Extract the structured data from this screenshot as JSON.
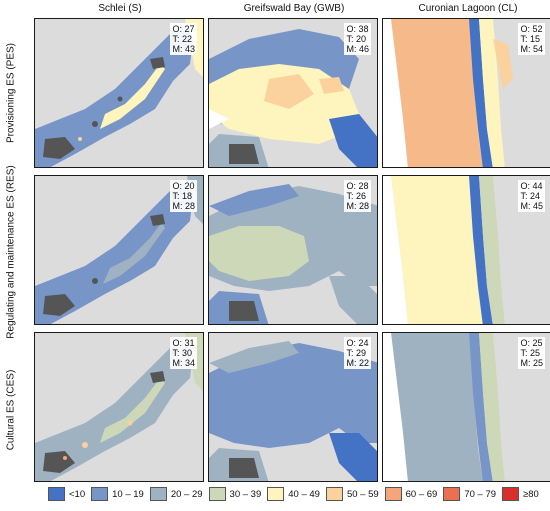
{
  "columns": [
    "Schlei (S)",
    "Greifswald Bay (GWB)",
    "Curonian Lagoon (CL)"
  ],
  "rows": [
    "Provisioning ES (PES)",
    "Regulating and maintenance ES (RES)",
    "Cultural ES (CES)"
  ],
  "stat_labels": {
    "o": "O:",
    "t": "T:",
    "m": "M:"
  },
  "panels": [
    [
      {
        "o": "27",
        "t": "22",
        "m": "43"
      },
      {
        "o": "38",
        "t": "20",
        "m": "46"
      },
      {
        "o": "52",
        "t": "15",
        "m": "54"
      }
    ],
    [
      {
        "o": "20",
        "t": "18",
        "m": "28"
      },
      {
        "o": "28",
        "t": "26",
        "m": "28"
      },
      {
        "o": "44",
        "t": "24",
        "m": "45"
      }
    ],
    [
      {
        "o": "31",
        "t": "30",
        "m": "34"
      },
      {
        "o": "24",
        "t": "29",
        "m": "22"
      },
      {
        "o": "25",
        "t": "25",
        "m": "25"
      }
    ]
  ],
  "legend": [
    {
      "label": "<10",
      "color": "#4472c4"
    },
    {
      "label": "10 – 19",
      "color": "#7895c7"
    },
    {
      "label": "20 – 29",
      "color": "#9fb2c2"
    },
    {
      "label": "30 – 39",
      "color": "#cdd8b8"
    },
    {
      "label": "40 – 49",
      "color": "#fdf5bd"
    },
    {
      "label": "50 – 59",
      "color": "#fbd29e"
    },
    {
      "label": "60 – 69",
      "color": "#f5a57a"
    },
    {
      "label": "70 – 79",
      "color": "#ec6f52"
    },
    {
      "label": "≥80",
      "color": "#d9302c"
    }
  ],
  "colors": {
    "land": "#dcdcdc",
    "urban": "#555555",
    "water": "#ffffff"
  }
}
